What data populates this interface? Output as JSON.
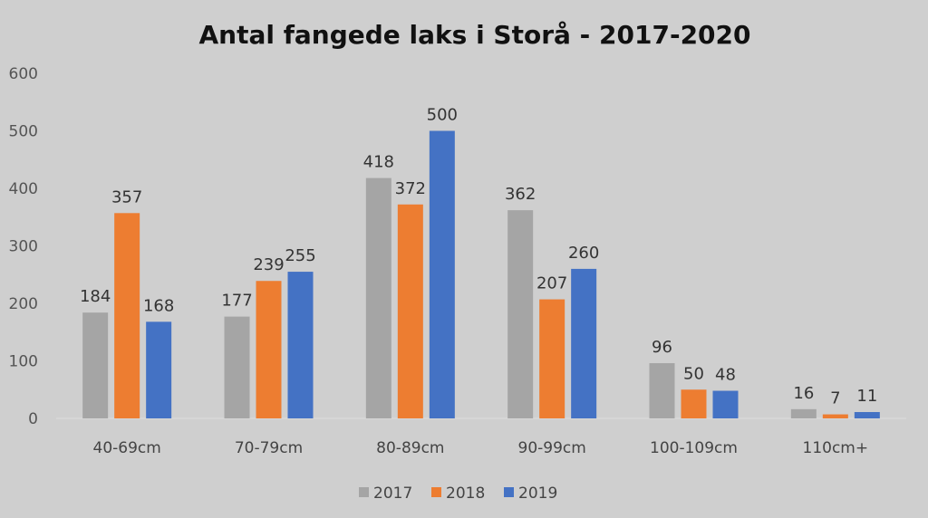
{
  "chart_data": {
    "type": "bar",
    "title": "Antal fangede laks i Storå - 2017-2020",
    "xlabel": "",
    "ylabel": "",
    "ylim": [
      0,
      600
    ],
    "yticks": [
      0,
      100,
      200,
      300,
      400,
      500,
      600
    ],
    "grid": false,
    "legend_position": "bottom",
    "categories": [
      "40-69cm",
      "70-79cm",
      "80-89cm",
      "90-99cm",
      "100-109cm",
      "110cm+"
    ],
    "series": [
      {
        "name": "2017",
        "color": "#a5a5a5",
        "values": [
          184,
          177,
          418,
          362,
          96,
          16
        ]
      },
      {
        "name": "2018",
        "color": "#ed7d31",
        "values": [
          357,
          239,
          372,
          207,
          50,
          7
        ]
      },
      {
        "name": "2019",
        "color": "#4472c4",
        "values": [
          168,
          255,
          500,
          260,
          48,
          11
        ]
      }
    ]
  }
}
